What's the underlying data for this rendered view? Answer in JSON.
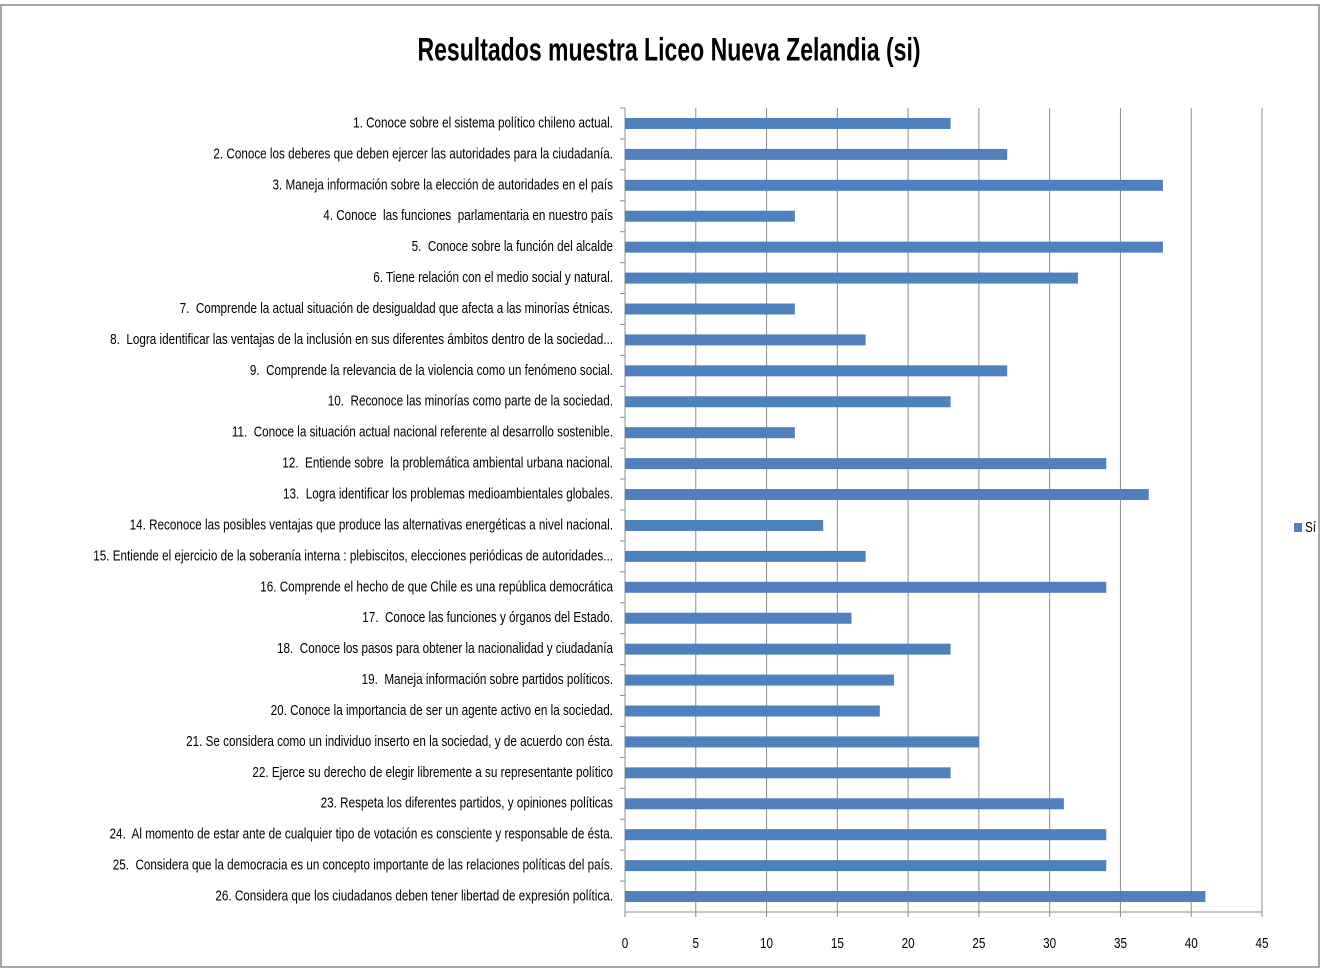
{
  "chart_data": {
    "type": "bar",
    "orientation": "horizontal",
    "title": "Resultados muestra Liceo Nueva Zelandia (si)",
    "categories": [
      "1. Conoce sobre el sistema político chileno actual.",
      "2. Conoce los deberes que deben ejercer las autoridades para la ciudadanía.",
      "3. Maneja información sobre la elección de autoridades en el país",
      "4. Conoce  las funciones  parlamentaria en nuestro país",
      "5.  Conoce sobre la función del alcalde",
      "6. Tiene relación con el medio social y natural.",
      "7.  Comprende la actual situación de desigualdad que afecta a las minorías étnicas.",
      "8.  Logra identificar las ventajas de la inclusión en sus diferentes ámbitos dentro de la sociedad...",
      "9.  Comprende la relevancia de la violencia como un fenómeno social.",
      "10.  Reconoce las minorías como parte de la sociedad.",
      "11.  Conoce la situación actual nacional referente al desarrollo sostenible.",
      "12.  Entiende sobre  la problemática ambiental urbana nacional.",
      "13.  Logra identificar los problemas medioambientales globales.",
      "14. Reconoce las posibles ventajas que produce las alternativas energéticas a nivel nacional.",
      "15. Entiende el ejercicio de la soberanía interna : plebiscitos, elecciones periódicas de autoridades...",
      "16. Comprende el hecho de que Chile es una república democrática",
      "17.  Conoce las funciones y órganos del Estado.",
      "18.  Conoce los pasos para obtener la nacionalidad y ciudadanía",
      "19.  Maneja información sobre partidos políticos.",
      "20. Conoce la importancia de ser un agente activo en la sociedad.",
      "21. Se considera como un individuo inserto en la sociedad, y de acuerdo con ésta.",
      "22. Ejerce su derecho de elegir libremente a su representante político",
      "23. Respeta los diferentes partidos, y opiniones políticas",
      "24.  Al momento de estar ante de cualquier tipo de votación es consciente y responsable de ésta.",
      "25.  Considera que la democracia es un concepto importante de las relaciones políticas del país.",
      "26. Considera que los ciudadanos deben tener libertad de expresión política."
    ],
    "series": [
      {
        "name": "Sí",
        "color": "#4f81bd",
        "values": [
          23,
          27,
          38,
          12,
          38,
          32,
          12,
          17,
          27,
          23,
          12,
          34,
          37,
          14,
          17,
          34,
          16,
          23,
          19,
          18,
          25,
          23,
          31,
          34,
          34,
          41
        ]
      }
    ],
    "xlim": [
      0,
      45
    ],
    "xticks": [
      0,
      5,
      10,
      15,
      20,
      25,
      30,
      35,
      40,
      45
    ],
    "grid": true,
    "legend": "right"
  }
}
